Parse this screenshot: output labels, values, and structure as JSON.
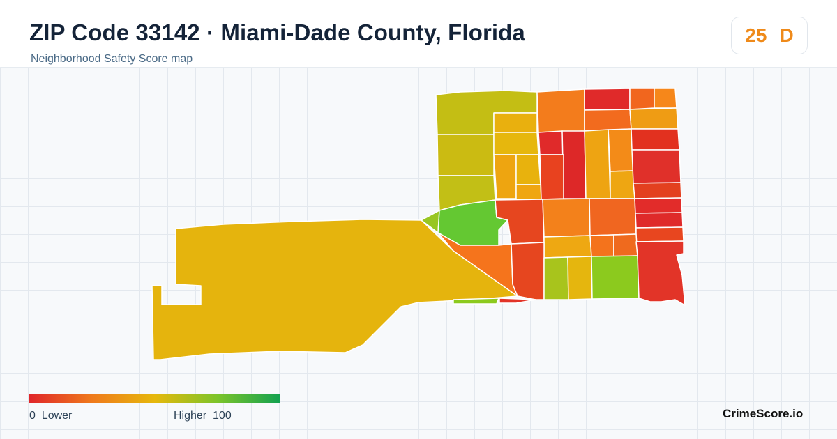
{
  "header": {
    "title": "ZIP Code 33142 · Miami-Dade County, Florida",
    "subtitle": "Neighborhood Safety Score map"
  },
  "score_badge": {
    "score": "25",
    "grade": "D",
    "color": "#ef8a1a"
  },
  "map": {
    "outline_color": "#ffffff",
    "region_colors": {
      "west_tract": "#e5b40d",
      "northwest_upper": "#c2c016",
      "center_green": "#64c832",
      "south_green": "#8cca1e"
    }
  },
  "legend": {
    "low_value": "0",
    "low_label": "Lower",
    "high_label": "Higher",
    "high_value": "100",
    "colors": [
      "#e0262a",
      "#ef7a1c",
      "#e6b80c",
      "#7cc42a",
      "#12a150"
    ]
  },
  "brand": "CrimeScore.io"
}
